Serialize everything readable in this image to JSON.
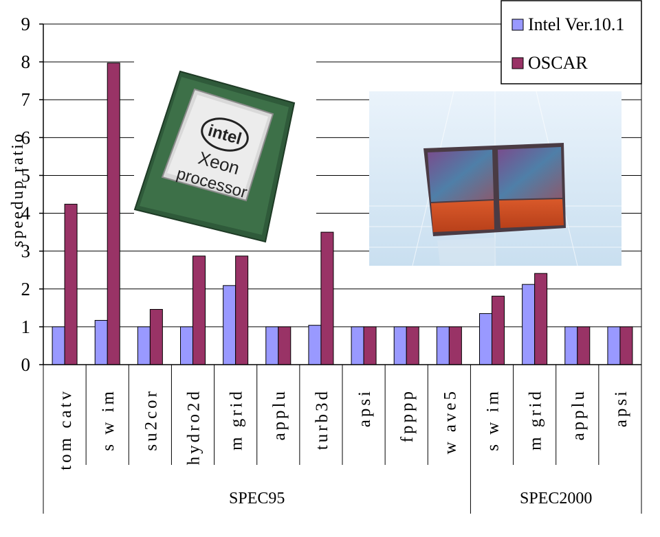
{
  "chart_data": {
    "type": "bar",
    "ylabel": "speedup ratio",
    "ylim": [
      0,
      9
    ],
    "yticks": [
      "0",
      "1",
      "2",
      "3",
      "4",
      "5",
      "6",
      "7",
      "8",
      "9"
    ],
    "grid": "horizontal major gridlines",
    "legend_position": "top-right",
    "categories": [
      "tomcatv",
      "swim",
      "su2cor",
      "hydro2d",
      "mgrid",
      "applu",
      "turb3d",
      "apsi",
      "fpppp",
      "wave5",
      "swim",
      "mgrid",
      "applu",
      "apsi"
    ],
    "category_display": [
      "tom catv",
      "s w im",
      "su2cor",
      "hydro2d",
      "m grid",
      "applu",
      "turb3d",
      "apsi",
      "fpppp",
      "w ave5",
      "s w im",
      "m grid",
      "applu",
      "apsi"
    ],
    "groups": [
      {
        "name": "SPEC95",
        "count": 10
      },
      {
        "name": "SPEC2000",
        "count": 4
      }
    ],
    "series": [
      {
        "name": "Intel Ver.10.1",
        "color": "#9999ff",
        "values": [
          1.0,
          1.17,
          1.0,
          1.0,
          2.09,
          1.0,
          1.04,
          1.0,
          1.0,
          1.0,
          1.35,
          2.12,
          1.0,
          1.0
        ]
      },
      {
        "name": "OSCAR",
        "color": "#993366",
        "values": [
          4.24,
          7.97,
          1.46,
          2.87,
          2.87,
          1.0,
          3.5,
          1.0,
          1.0,
          1.0,
          1.81,
          2.41,
          1.0,
          1.0
        ]
      }
    ]
  },
  "images": {
    "cpu_logo": "intel",
    "cpu_line1": "Xeon",
    "cpu_line2": "processor"
  }
}
